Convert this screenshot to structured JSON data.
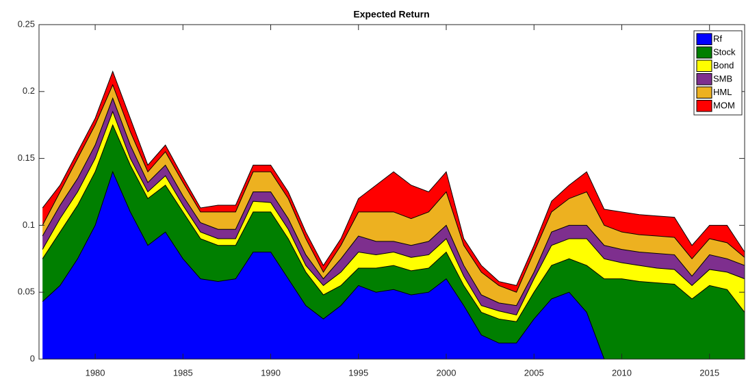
{
  "chart_data": {
    "type": "stacked_area",
    "title": "Expected Return",
    "x": [
      1977,
      1978,
      1979,
      1980,
      1981,
      1982,
      1983,
      1984,
      1985,
      1986,
      1987,
      1988,
      1989,
      1990,
      1991,
      1992,
      1993,
      1994,
      1995,
      1996,
      1997,
      1998,
      1999,
      2000,
      2001,
      2002,
      2003,
      2004,
      2005,
      2006,
      2007,
      2008,
      2009,
      2010,
      2011,
      2012,
      2013,
      2014,
      2015,
      2016,
      2017
    ],
    "series": [
      {
        "name": "Rf",
        "color": "#0000ff",
        "values": [
          0.043,
          0.055,
          0.075,
          0.1,
          0.14,
          0.11,
          0.085,
          0.095,
          0.075,
          0.06,
          0.058,
          0.06,
          0.08,
          0.08,
          0.06,
          0.04,
          0.03,
          0.04,
          0.055,
          0.05,
          0.052,
          0.048,
          0.05,
          0.06,
          0.04,
          0.018,
          0.012,
          0.012,
          0.03,
          0.045,
          0.05,
          0.035,
          0,
          0,
          0,
          0,
          0,
          0,
          0,
          0,
          0
        ]
      },
      {
        "name": "Stock",
        "color": "#007f00",
        "values": [
          0.032,
          0.04,
          0.04,
          0.04,
          0.035,
          0.035,
          0.035,
          0.035,
          0.035,
          0.03,
          0.027,
          0.025,
          0.03,
          0.03,
          0.03,
          0.025,
          0.018,
          0.015,
          0.013,
          0.018,
          0.018,
          0.018,
          0.018,
          0.02,
          0.015,
          0.017,
          0.018,
          0.016,
          0.02,
          0.025,
          0.025,
          0.035,
          0.06,
          0.06,
          0.058,
          0.057,
          0.056,
          0.045,
          0.055,
          0.052,
          0.035
        ]
      },
      {
        "name": "Bond",
        "color": "#ffff00",
        "values": [
          0.007,
          0.01,
          0.01,
          0.01,
          0.01,
          0.005,
          0.005,
          0.007,
          0.005,
          0.005,
          0.005,
          0.005,
          0.008,
          0.007,
          0.007,
          0.005,
          0.007,
          0.01,
          0.012,
          0.01,
          0.01,
          0.01,
          0.01,
          0.01,
          0.007,
          0.005,
          0.006,
          0.005,
          0.01,
          0.015,
          0.015,
          0.02,
          0.015,
          0.012,
          0.012,
          0.011,
          0.011,
          0.01,
          0.012,
          0.013,
          0.025
        ]
      },
      {
        "name": "SMB",
        "color": "#7e2f8e",
        "values": [
          0.01,
          0.01,
          0.01,
          0.01,
          0.01,
          0.01,
          0.007,
          0.008,
          0.007,
          0.007,
          0.007,
          0.007,
          0.007,
          0.008,
          0.008,
          0.008,
          0.005,
          0.01,
          0.012,
          0.01,
          0.008,
          0.009,
          0.01,
          0.01,
          0.008,
          0.008,
          0.006,
          0.007,
          0.005,
          0.01,
          0.01,
          0.01,
          0.01,
          0.01,
          0.01,
          0.011,
          0.011,
          0.007,
          0.011,
          0.01,
          0.01
        ]
      },
      {
        "name": "HML",
        "color": "#edb120",
        "values": [
          0.008,
          0.01,
          0.015,
          0.015,
          0.01,
          0.01,
          0.008,
          0.01,
          0.01,
          0.008,
          0.013,
          0.013,
          0.015,
          0.015,
          0.015,
          0.012,
          0.005,
          0.01,
          0.018,
          0.022,
          0.022,
          0.02,
          0.022,
          0.025,
          0.015,
          0.017,
          0.013,
          0.01,
          0.015,
          0.015,
          0.02,
          0.025,
          0.015,
          0.013,
          0.013,
          0.013,
          0.013,
          0.013,
          0.012,
          0.012,
          0.006
        ]
      },
      {
        "name": "MOM",
        "color": "#ff0000",
        "values": [
          0.013,
          0.005,
          0.005,
          0.005,
          0.01,
          0.01,
          0.005,
          0.005,
          0.004,
          0.003,
          0.005,
          0.005,
          0.005,
          0.005,
          0.005,
          0.005,
          0.005,
          0.005,
          0.01,
          0.02,
          0.03,
          0.025,
          0.015,
          0.015,
          0.005,
          0.005,
          0.003,
          0.005,
          0.005,
          0.008,
          0.01,
          0.015,
          0.012,
          0.015,
          0.015,
          0.015,
          0.015,
          0.01,
          0.01,
          0.013,
          0.004
        ]
      }
    ],
    "xlim": [
      1976.8,
      2017
    ],
    "xticks": [
      1980,
      1985,
      1990,
      1995,
      2000,
      2005,
      2010,
      2015
    ],
    "ylim": [
      0,
      0.25
    ],
    "yticks": [
      0,
      0.05,
      0.1,
      0.15,
      0.2,
      0.25
    ],
    "legend": "top-right"
  }
}
